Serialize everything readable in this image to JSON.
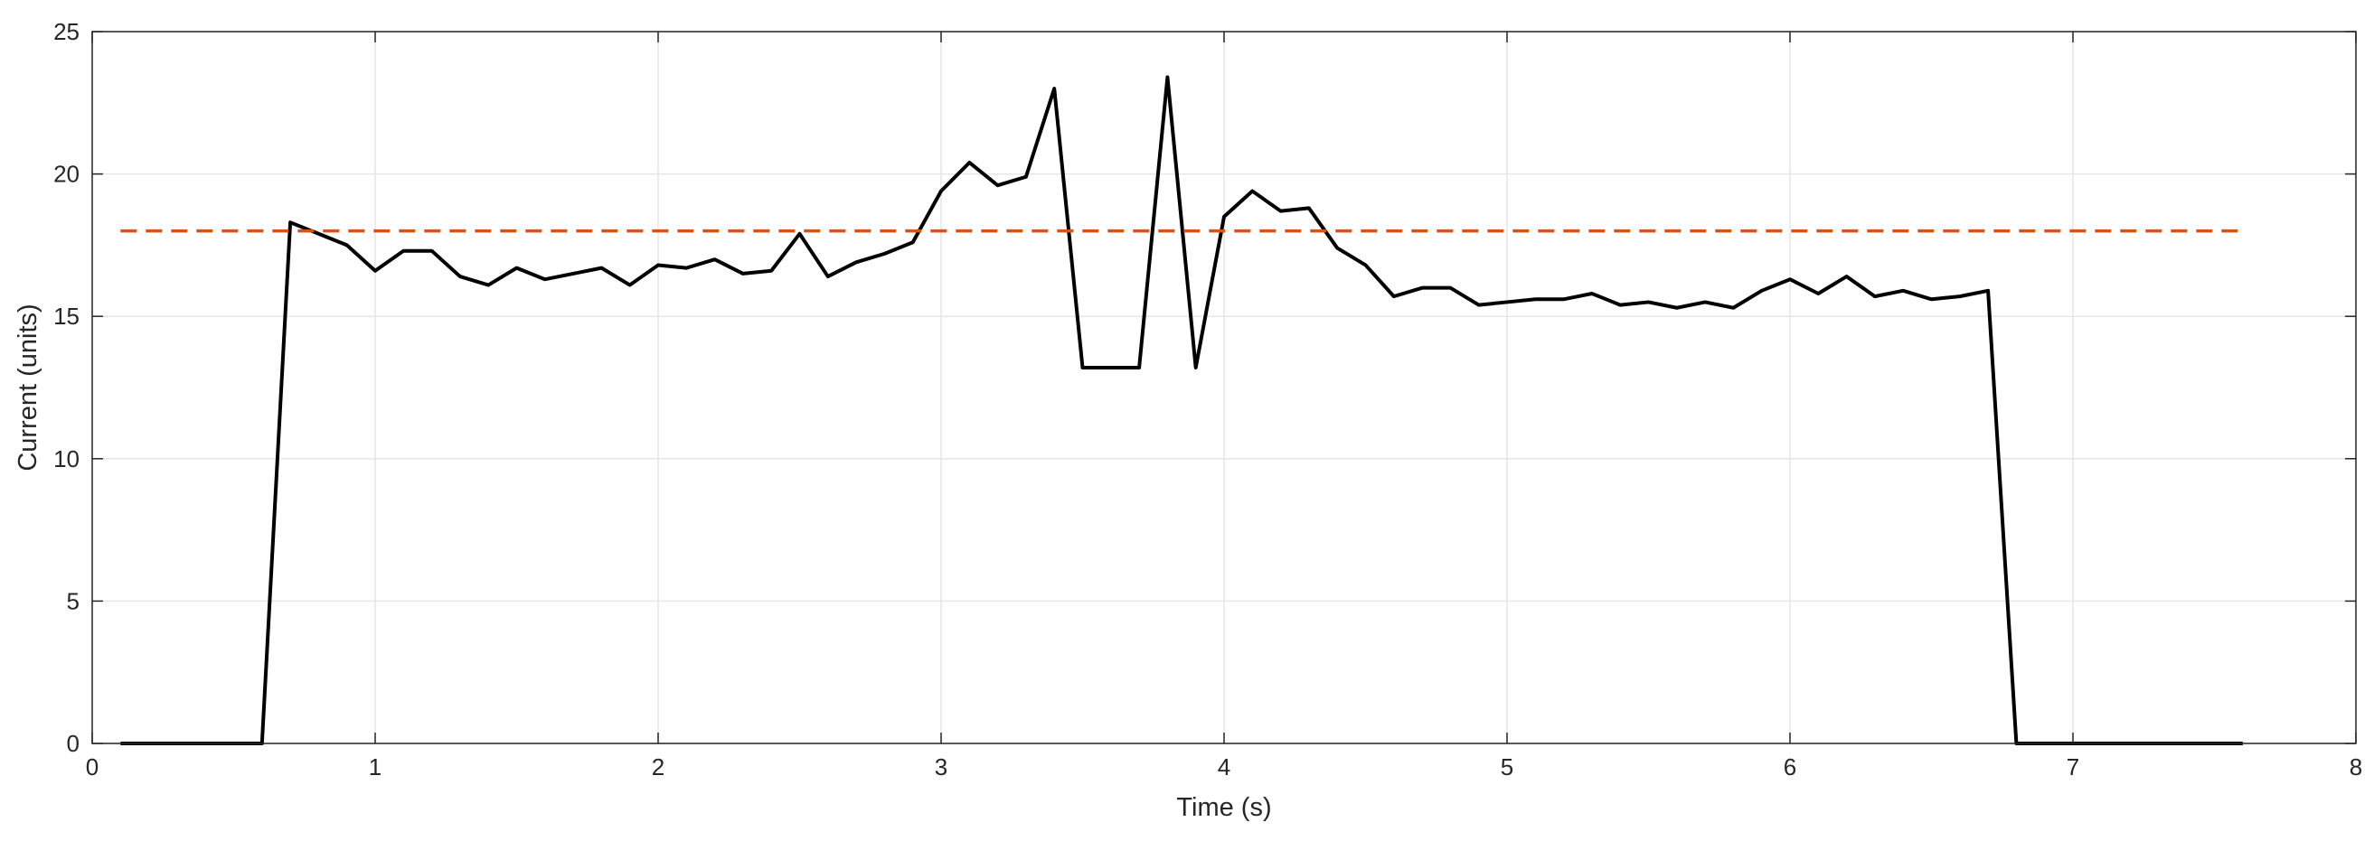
{
  "chart_data": {
    "type": "line",
    "title": "",
    "xlabel": "Time (s)",
    "ylabel": "Current (units)",
    "xlim": [
      0,
      8
    ],
    "ylim": [
      0,
      25
    ],
    "x_ticks": [
      0,
      1,
      2,
      3,
      4,
      5,
      6,
      7,
      8
    ],
    "y_ticks": [
      0,
      5,
      10,
      15,
      20,
      25
    ],
    "grid": true,
    "series": [
      {
        "color": "#000000",
        "style": "solid",
        "x": [
          0.1,
          0.6,
          0.7,
          0.8,
          0.9,
          1.0,
          1.1,
          1.2,
          1.3,
          1.4,
          1.5,
          1.6,
          1.7,
          1.8,
          1.9,
          2.0,
          2.1,
          2.2,
          2.3,
          2.4,
          2.5,
          2.6,
          2.7,
          2.8,
          2.9,
          3.0,
          3.1,
          3.2,
          3.3,
          3.4,
          3.5,
          3.6,
          3.7,
          3.8,
          3.9,
          4.0,
          4.1,
          4.2,
          4.3,
          4.4,
          4.5,
          4.6,
          4.7,
          4.8,
          4.9,
          5.0,
          5.1,
          5.2,
          5.3,
          5.4,
          5.5,
          5.6,
          5.7,
          5.8,
          5.9,
          6.0,
          6.1,
          6.2,
          6.3,
          6.4,
          6.5,
          6.6,
          6.7,
          6.8,
          7.6
        ],
        "y": [
          0,
          0,
          18.3,
          17.9,
          17.5,
          16.6,
          17.3,
          17.3,
          16.4,
          16.1,
          16.7,
          16.3,
          16.5,
          16.7,
          16.1,
          16.8,
          16.7,
          17.0,
          16.5,
          16.6,
          17.9,
          16.4,
          16.9,
          17.2,
          17.6,
          19.4,
          20.4,
          19.6,
          19.9,
          23.0,
          13.2,
          13.2,
          13.2,
          23.4,
          13.2,
          18.5,
          19.4,
          18.7,
          18.8,
          17.4,
          16.8,
          15.7,
          16.0,
          16.0,
          15.4,
          15.5,
          15.6,
          15.6,
          15.8,
          15.4,
          15.5,
          15.3,
          15.5,
          15.3,
          15.9,
          16.3,
          15.8,
          16.4,
          15.7,
          15.9,
          15.6,
          15.7,
          15.9,
          0,
          0
        ]
      },
      {
        "color": "#D95319",
        "style": "dashed",
        "x": [
          0.1,
          7.6
        ],
        "y": [
          18,
          18
        ]
      }
    ]
  }
}
